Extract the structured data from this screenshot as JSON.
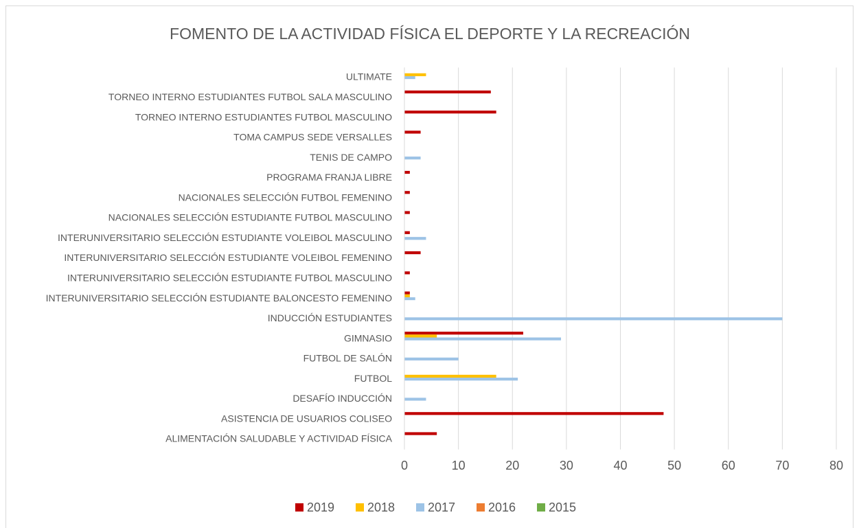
{
  "chart_data": {
    "type": "barh",
    "title": "FOMENTO DE LA ACTIVIDAD FÍSICA EL DEPORTE Y LA RECREACIÓN",
    "categories": [
      "ALIMENTACIÓN SALUDABLE Y ACTIVIDAD FÍSICA",
      "ASISTENCIA DE USUARIOS COLISEO",
      "DESAFÍO INDUCCIÓN",
      "FUTBOL",
      "FUTBOL DE SALÓN",
      "GIMNASIO",
      "INDUCCIÓN ESTUDIANTES",
      "INTERUNIVERSITARIO SELECCIÓN ESTUDIANTE BALONCESTO FEMENINO",
      "INTERUNIVERSITARIO SELECCIÓN ESTUDIANTE FUTBOL MASCULINO",
      "INTERUNIVERSITARIO SELECCIÓN ESTUDIANTE VOLEIBOL FEMENINO",
      "INTERUNIVERSITARIO SELECCIÓN ESTUDIANTE VOLEIBOL MASCULINO",
      "NACIONALES SELECCIÓN ESTUDIANTE FUTBOL MASCULINO",
      "NACIONALES SELECCIÓN FUTBOL FEMENINO",
      "PROGRAMA FRANJA LIBRE",
      "TENIS DE CAMPO",
      "TOMA CAMPUS SEDE VERSALLES",
      "TORNEO INTERNO ESTUDIANTES FUTBOL MASCULINO",
      "TORNEO INTERNO ESTUDIANTES FUTBOL SALA MASCULINO",
      "ULTIMATE"
    ],
    "series": [
      {
        "name": "2019",
        "color": "#c00000",
        "values": [
          6,
          48,
          null,
          null,
          null,
          22,
          null,
          1,
          1,
          3,
          1,
          1,
          1,
          1,
          null,
          3,
          17,
          16,
          null
        ]
      },
      {
        "name": "2018",
        "color": "#ffc000",
        "values": [
          null,
          null,
          null,
          17,
          null,
          6,
          null,
          1,
          null,
          null,
          null,
          null,
          null,
          null,
          null,
          null,
          null,
          null,
          4
        ]
      },
      {
        "name": "2017",
        "color": "#9dc3e6",
        "values": [
          null,
          null,
          4,
          21,
          10,
          29,
          70,
          2,
          null,
          null,
          4,
          null,
          null,
          null,
          3,
          null,
          null,
          null,
          2
        ]
      },
      {
        "name": "2016",
        "color": "#ed7d31",
        "values": [
          null,
          null,
          null,
          null,
          null,
          null,
          null,
          null,
          null,
          null,
          null,
          null,
          null,
          null,
          null,
          null,
          null,
          null,
          null
        ]
      },
      {
        "name": "2015",
        "color": "#70ad47",
        "values": [
          null,
          null,
          null,
          null,
          null,
          null,
          null,
          null,
          null,
          null,
          null,
          null,
          null,
          null,
          null,
          null,
          null,
          null,
          null
        ]
      }
    ],
    "xlim": [
      0,
      80
    ],
    "xticks": [
      0,
      10,
      20,
      30,
      40,
      50,
      60,
      70,
      80
    ],
    "grid": true,
    "legend": "bottom"
  }
}
